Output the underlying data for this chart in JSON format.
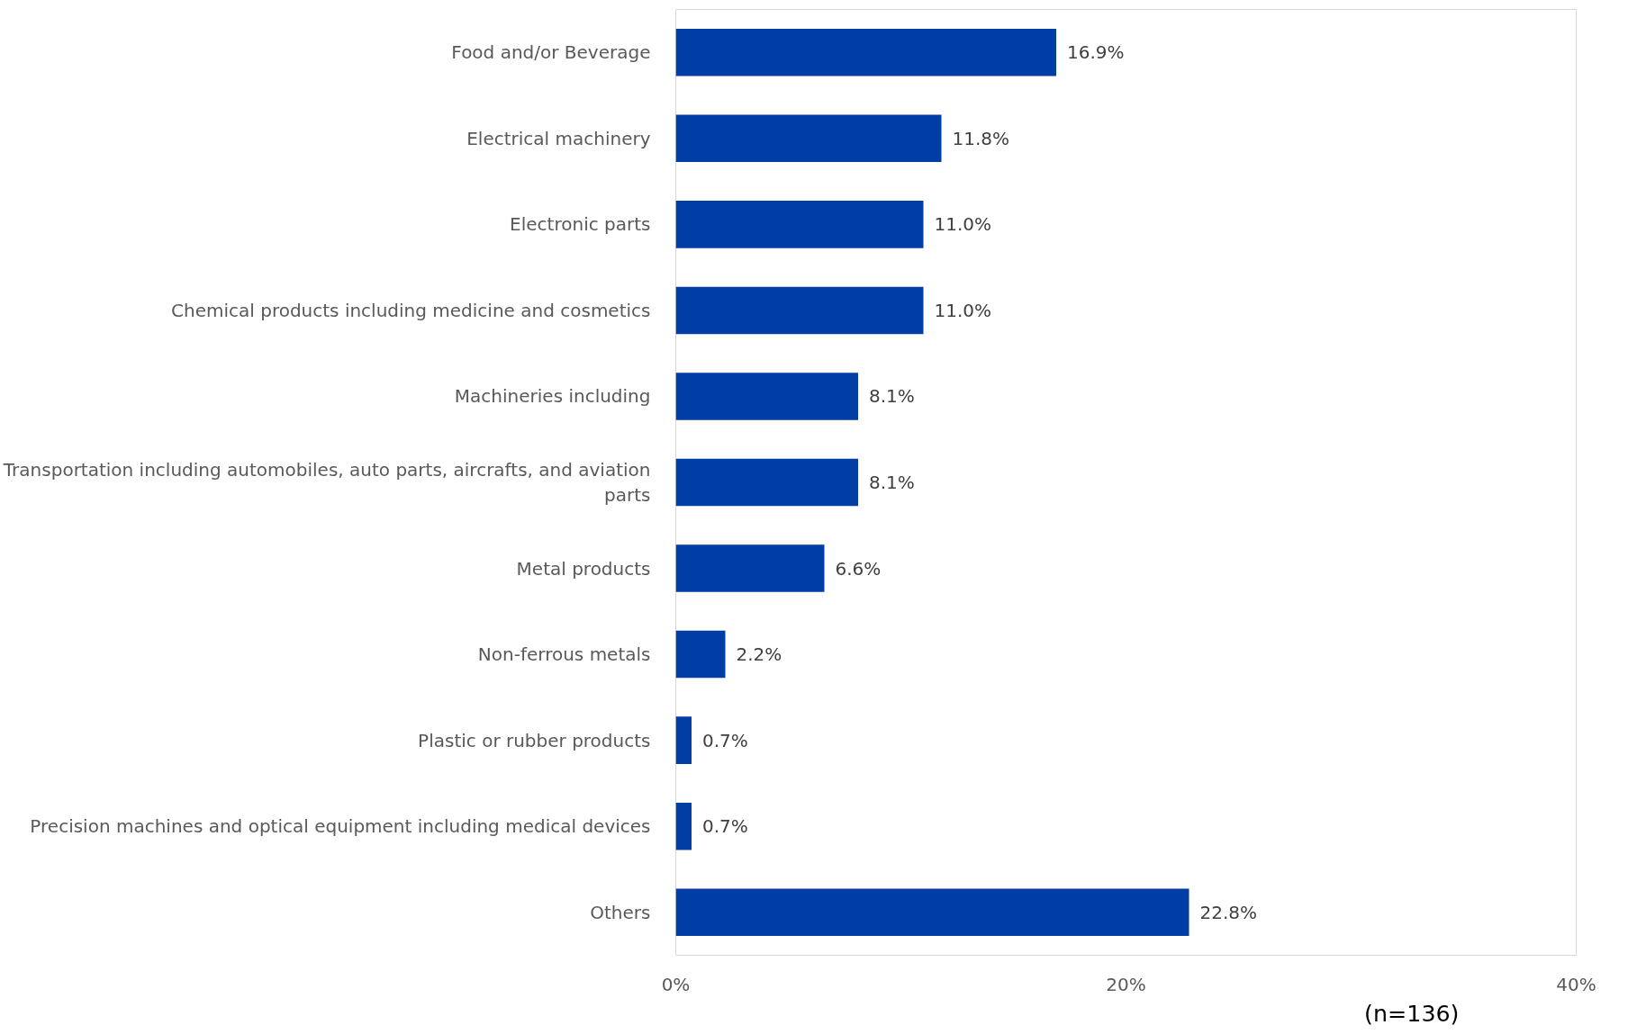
{
  "chart_data": {
    "type": "bar",
    "orientation": "horizontal",
    "categories": [
      "Food and/or Beverage",
      "Electrical machinery",
      "Electronic parts",
      "Chemical products including medicine and cosmetics",
      "Machineries including",
      "Transportation including automobiles, auto parts, aircrafts, and aviation parts",
      "Metal products",
      "Non-ferrous metals",
      "Plastic or rubber products",
      "Precision machines and optical equipment including medical devices",
      "Others"
    ],
    "values": [
      16.9,
      11.8,
      11.0,
      11.0,
      8.1,
      8.1,
      6.6,
      2.2,
      0.7,
      0.7,
      22.8
    ],
    "value_labels": [
      "16.9%",
      "11.8%",
      "11.0%",
      "11.0%",
      "8.1%",
      "8.1%",
      "6.6%",
      "2.2%",
      "0.7%",
      "0.7%",
      "22.8%"
    ],
    "color": "#003da5",
    "xlim": [
      0,
      40
    ],
    "xticks": [
      {
        "value": 0,
        "label": "0%"
      },
      {
        "value": 20,
        "label": "20%"
      },
      {
        "value": 40,
        "label": "40%"
      }
    ],
    "grid": false,
    "annotations": [
      "(n=136)"
    ]
  }
}
